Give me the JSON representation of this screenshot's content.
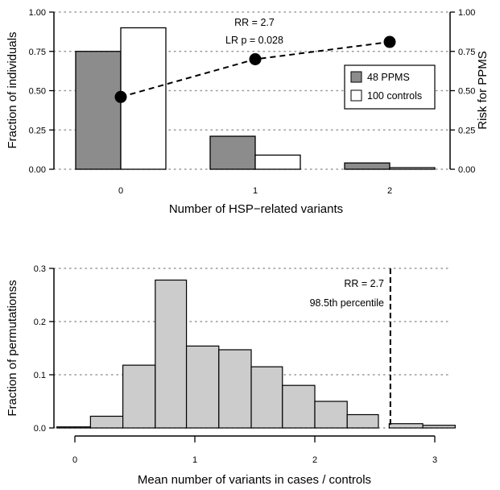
{
  "chart_data": [
    {
      "type": "bar",
      "categories": [
        "0",
        "1",
        "2"
      ],
      "series": [
        {
          "name": "48 PPMS",
          "values": [
            0.75,
            0.21,
            0.04
          ],
          "color": "#8c8c8c"
        },
        {
          "name": "100 controls",
          "values": [
            0.9,
            0.09,
            0.01
          ],
          "color": "#ffffff"
        }
      ],
      "overlay_line": {
        "type": "line",
        "style": "dashed",
        "marker": "filled-circle",
        "y_axis": "right",
        "values": [
          0.46,
          0.7,
          0.81
        ]
      },
      "xlabel": "Number of HSP−related variants",
      "ylabel": "Fraction of individuals",
      "ylabel_right": "Risk for PPMS",
      "ylim": [
        0,
        1
      ],
      "ylim_right": [
        0,
        1
      ],
      "yticks": [
        "0.00",
        "0.25",
        "0.50",
        "0.75",
        "1.00"
      ],
      "xticks": [
        "0",
        "1",
        "2"
      ],
      "grid": "horizontal-dotted",
      "legend_position": "right",
      "annotations": [
        "RR = 2.7",
        "LR p = 0.028"
      ]
    },
    {
      "type": "bar",
      "subtype": "histogram",
      "bin_edges": [
        -0.15,
        0.13,
        0.4,
        0.67,
        0.93,
        1.2,
        1.47,
        1.73,
        2.0,
        2.27,
        2.53,
        2.62,
        2.9,
        3.17
      ],
      "values": [
        0.002,
        0.022,
        0.118,
        0.278,
        0.154,
        0.147,
        0.115,
        0.08,
        0.05,
        0.025,
        0.0,
        0.008,
        0.005
      ],
      "color": "#cccccc",
      "reference_line": {
        "x": 2.63,
        "style": "dashed"
      },
      "xlabel": "Mean number of variants in cases / controls",
      "ylabel": "Fraction of permutationss",
      "xlim": [
        -0.15,
        3.05
      ],
      "ylim": [
        0,
        0.3
      ],
      "xticks": [
        "0",
        "1",
        "2",
        "3"
      ],
      "yticks": [
        "0.0",
        "0.1",
        "0.2",
        "0.3"
      ],
      "grid": "horizontal-dotted",
      "annotations": [
        "RR = 2.7",
        "98.5th percentile"
      ]
    }
  ]
}
